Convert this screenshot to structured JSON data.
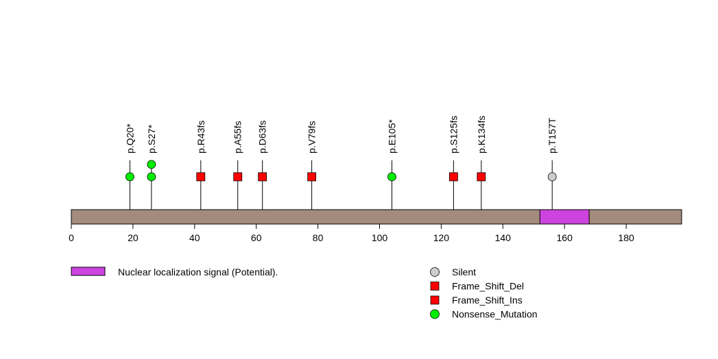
{
  "chart_data": {
    "type": "lollipop",
    "protein_length": 198,
    "xlim": [
      0,
      198
    ],
    "x_ticks": [
      0,
      20,
      40,
      60,
      80,
      100,
      120,
      140,
      160,
      180
    ],
    "backbone_color": "#a58b7d",
    "domains": [
      {
        "start": 152,
        "end": 168,
        "label": "Nuclear localization signal (Potential).",
        "color": "#cc44dd"
      }
    ],
    "mutations": [
      {
        "label": "p.Q20*",
        "position": 19,
        "type": "Nonsense_Mutation",
        "count": 1
      },
      {
        "label": "p.S27*",
        "position": 26,
        "type": "Nonsense_Mutation",
        "count": 2
      },
      {
        "label": "p.R43fs",
        "position": 42,
        "type": "Frame_Shift_Del",
        "count": 1
      },
      {
        "label": "p.A55fs",
        "position": 54,
        "type": "Frame_Shift_Del",
        "count": 1
      },
      {
        "label": "p.D63fs",
        "position": 62,
        "type": "Frame_Shift_Del",
        "count": 1
      },
      {
        "label": "p.V79fs",
        "position": 78,
        "type": "Frame_Shift_Del",
        "count": 1
      },
      {
        "label": "p.E105*",
        "position": 104,
        "type": "Nonsense_Mutation",
        "count": 1
      },
      {
        "label": "p.S125fs",
        "position": 124,
        "type": "Frame_Shift_Del",
        "count": 1
      },
      {
        "label": "p.K134fs",
        "position": 133,
        "type": "Frame_Shift_Del",
        "count": 1
      },
      {
        "label": "p.T157T",
        "position": 156,
        "type": "Silent",
        "count": 1
      }
    ],
    "legend": [
      {
        "name": "Silent",
        "shape": "circle",
        "color": "#cccccc"
      },
      {
        "name": "Frame_Shift_Del",
        "shape": "square",
        "color": "#ff0000"
      },
      {
        "name": "Frame_Shift_Ins",
        "shape": "square",
        "color": "#ff0000"
      },
      {
        "name": "Nonsense_Mutation",
        "shape": "circle",
        "color": "#00ee00"
      }
    ]
  }
}
